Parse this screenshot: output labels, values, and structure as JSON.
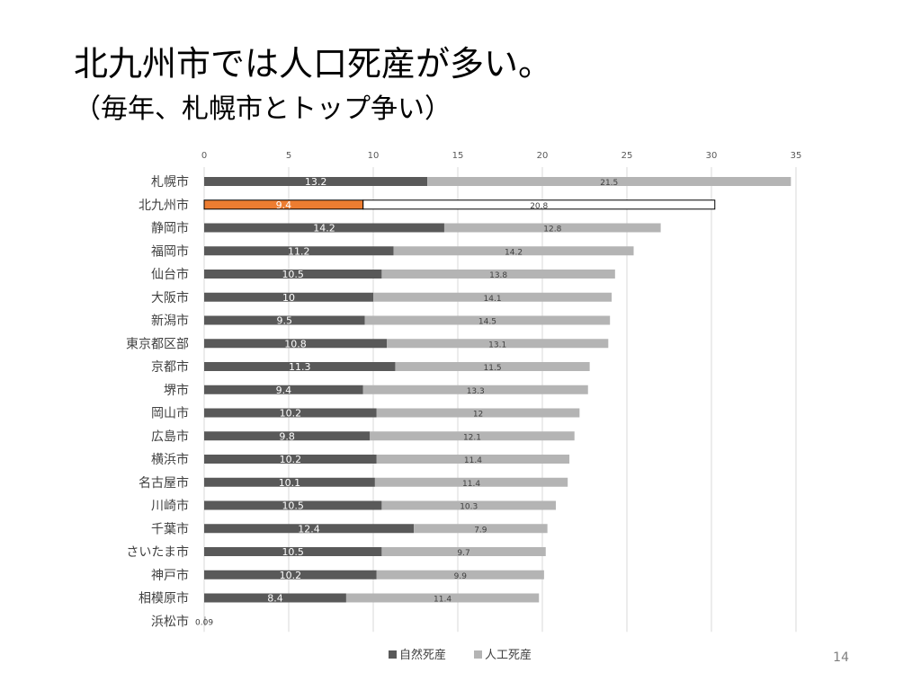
{
  "slide": {
    "title": "北九州市では人口死産が多い。",
    "subtitle": "（毎年、札幌市とトップ争い）",
    "page_number": "14"
  },
  "chart_data": {
    "type": "bar",
    "orientation": "horizontal",
    "stacked": true,
    "xlim": [
      0,
      35
    ],
    "x_ticks": [
      0,
      5,
      10,
      15,
      20,
      25,
      30,
      35
    ],
    "grid": true,
    "legend_position": "bottom",
    "highlight_category": "北九州市",
    "categories": [
      "札幌市",
      "北九州市",
      "静岡市",
      "福岡市",
      "仙台市",
      "大阪市",
      "新潟市",
      "東京都区部",
      "京都市",
      "堺市",
      "岡山市",
      "広島市",
      "横浜市",
      "名古屋市",
      "川崎市",
      "千葉市",
      "さいたま市",
      "神戸市",
      "相模原市",
      "浜松市"
    ],
    "series": [
      {
        "name": "自然死産",
        "color": "#595959",
        "highlight_color": "#ED7D31",
        "values": [
          13.2,
          9.4,
          14.2,
          11.2,
          10.5,
          10,
          9.5,
          10.8,
          11.3,
          9.4,
          10.2,
          9.8,
          10.2,
          10.1,
          10.5,
          12.4,
          10.5,
          10.2,
          8.4,
          null
        ],
        "labels": [
          "13.2",
          "9.4",
          "14.2",
          "11.2",
          "10.5",
          "10",
          "9.5",
          "10.8",
          "11.3",
          "9.4",
          "10.2",
          "9.8",
          "10.2",
          "10.1",
          "10.5",
          "12.4",
          "10.5",
          "10.2",
          "8.4",
          ""
        ]
      },
      {
        "name": "人工死産",
        "color": "#B4B4B4",
        "highlight_color": "#FFFFFF",
        "values": [
          21.5,
          20.8,
          12.8,
          14.2,
          13.8,
          14.1,
          14.5,
          13.1,
          11.5,
          13.3,
          12,
          12.1,
          11.4,
          11.4,
          10.3,
          7.9,
          9.7,
          9.9,
          11.4,
          0.09
        ],
        "labels": [
          "21.5",
          "20.8",
          "12.8",
          "14.2",
          "13.8",
          "14.1",
          "14.5",
          "13.1",
          "11.5",
          "13.3",
          "12",
          "12.1",
          "11.4",
          "11.4",
          "10.3",
          "7.9",
          "9.7",
          "9.9",
          "11.4",
          "0.09"
        ]
      }
    ]
  }
}
